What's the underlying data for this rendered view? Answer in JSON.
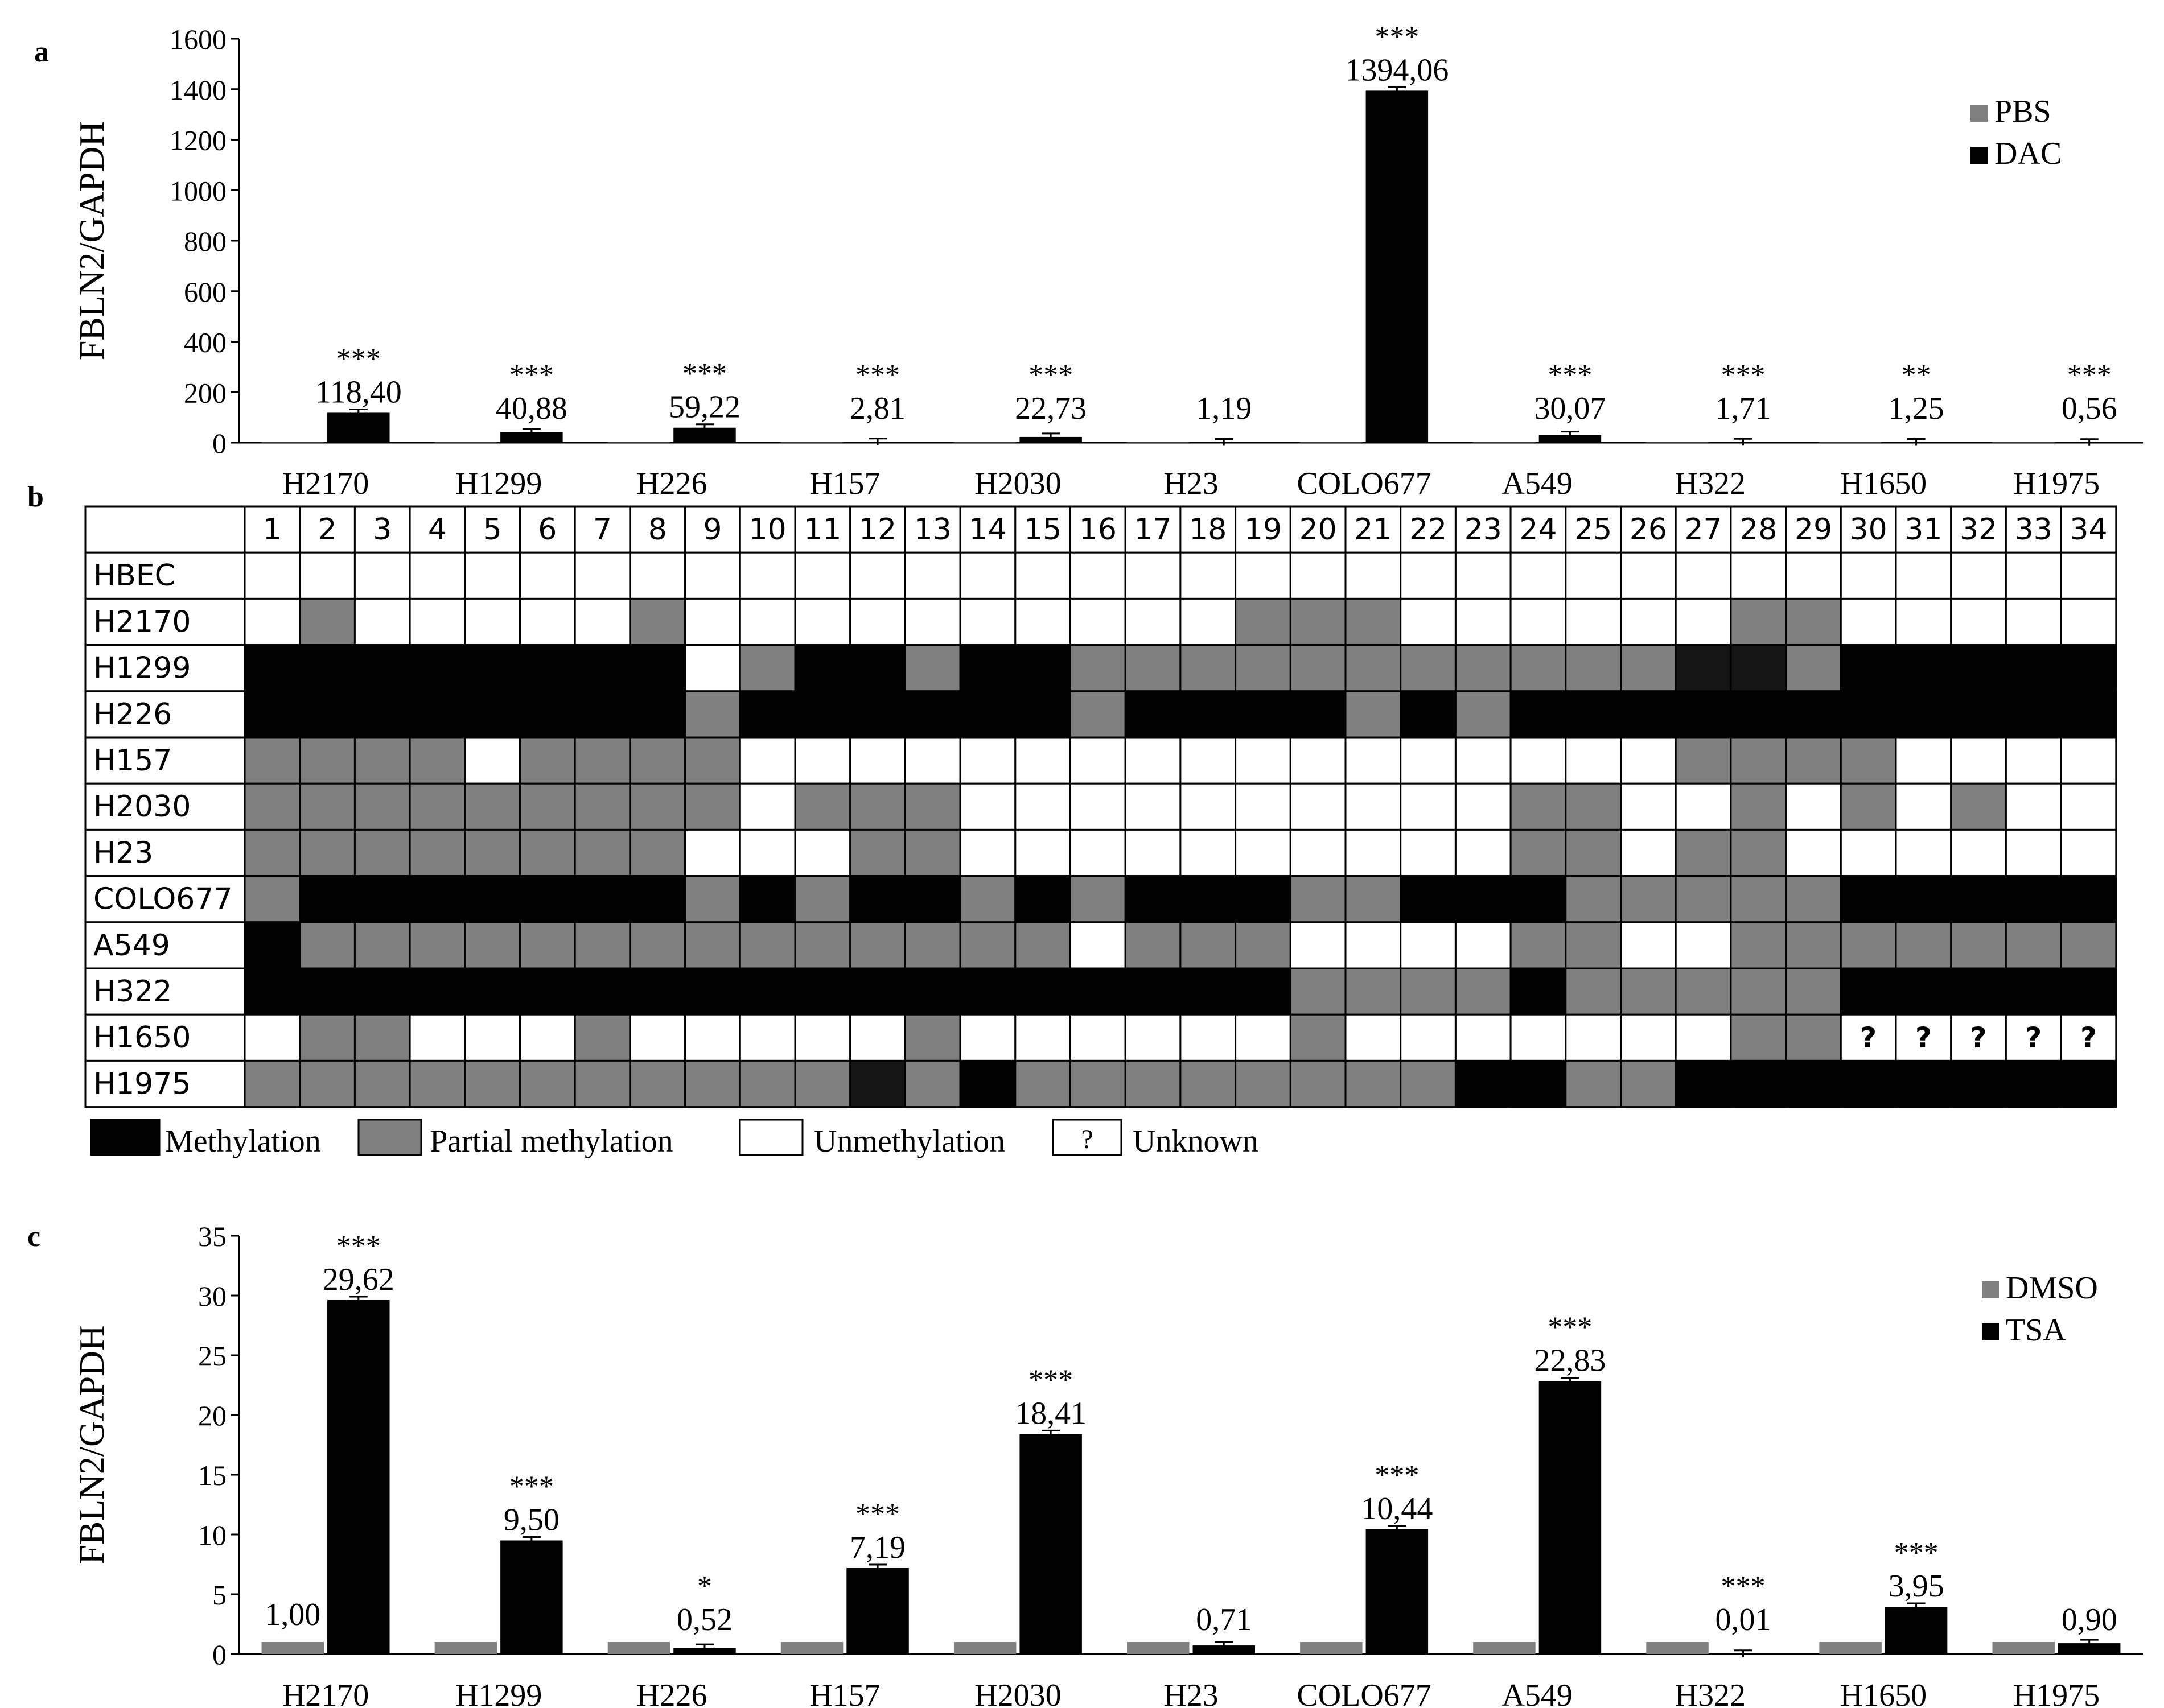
{
  "panels": {
    "a": "a",
    "b": "b",
    "c": "c"
  },
  "colors": {
    "black": "#000000",
    "gray": "#808080",
    "white": "#ffffff",
    "dark": "#151515"
  },
  "chart_data": [
    {
      "id": "a",
      "type": "bar",
      "ylabel": "FBLN2/GAPDH",
      "ylim": [
        0,
        1600
      ],
      "yticks": [
        0,
        200,
        400,
        600,
        800,
        1000,
        1200,
        1400,
        1600
      ],
      "categories": [
        "H2170",
        "H1299",
        "H226",
        "H157",
        "H2030",
        "H23",
        "COLO677",
        "A549",
        "H322",
        "H1650",
        "H1975"
      ],
      "series": [
        {
          "name": "PBS",
          "color": "#808080",
          "values": [
            1,
            1,
            1,
            1,
            1,
            1,
            1,
            1,
            1,
            1,
            1
          ]
        },
        {
          "name": "DAC",
          "color": "#000000",
          "values": [
            118.4,
            40.88,
            59.22,
            2.81,
            22.73,
            1.19,
            1394.06,
            30.07,
            1.71,
            1.25,
            0.56
          ]
        }
      ],
      "value_labels": [
        "118,40",
        "40,88",
        "59,22",
        "2,81",
        "22,73",
        "1,19",
        "1394,06",
        "30,07",
        "1,71",
        "1,25",
        "0,56"
      ],
      "significance": [
        "***",
        "***",
        "***",
        "***",
        "***",
        "",
        "***",
        "***",
        "***",
        "**",
        "***"
      ],
      "legend": "top-right"
    },
    {
      "id": "b",
      "type": "heatmap",
      "columns": [
        "1",
        "2",
        "3",
        "4",
        "5",
        "6",
        "7",
        "8",
        "9",
        "10",
        "11",
        "12",
        "13",
        "14",
        "15",
        "16",
        "17",
        "18",
        "19",
        "20",
        "21",
        "22",
        "23",
        "24",
        "25",
        "26",
        "27",
        "28",
        "29",
        "30",
        "31",
        "32",
        "33",
        "34"
      ],
      "rows": [
        {
          "name": "HBEC",
          "status": "WWWWWWWWWWWWWWWWWWWWWWWWWWWWWWWWWW"
        },
        {
          "name": "H2170",
          "status": "WPWWWWWPWWWWWWWWWWPPPWWWWWWPPWWWWW"
        },
        {
          "name": "H1299",
          "status": "MMMMMMMQWPMMPMMPPPPPPPPPPPDDPMMMMM"
        },
        {
          "name": "H226",
          "status": "MMMMMMMMPMMMMMMPMMMMPMPMMMMMMMMMMM"
        },
        {
          "name": "H157",
          "status": "PPPPWPPPPWWWWWWWWWWWWWWWWWPPPPWWWW"
        },
        {
          "name": "H2030",
          "status": "PPPPPPPPPWPPPWWWWWWWWWWPPWWPWPWPWW"
        },
        {
          "name": "H23",
          "status": "PPPPPPPPWWWPPWWWWWWWWWWPPWPPWWWWWW"
        },
        {
          "name": "COLO677",
          "status": "PMMMMMMMPMPMMPMPMMMPPMMMPPPPPMMMMM"
        },
        {
          "name": "A549",
          "status": "MPPPPPPPPPPPPPPWPPPWWWWPPWWPPPPPPP"
        },
        {
          "name": "H322",
          "status": "MMMMMMMMMMMMMMMMMMMPPPPMPPPPPMMMMM"
        },
        {
          "name": "H1650",
          "status": "WPPWWWPWWWWWPWWWWWWPWWWWWWWPPUUUUU"
        },
        {
          "name": "H1975",
          "status": "PPPPPPPPPPPDPMPPPPPPPPMMPPMMMMMMMM"
        }
      ],
      "cell_notes": [
        {
          "row": "H1299",
          "col": "8",
          "text": "?"
        }
      ],
      "legend": [
        {
          "key": "M",
          "label": "Methylation",
          "color": "#000000"
        },
        {
          "key": "P",
          "label": "Partial methylation",
          "color": "#808080"
        },
        {
          "key": "W",
          "label": "Unmethylation",
          "color": "#ffffff"
        },
        {
          "key": "U",
          "label": "Unknown",
          "color": "#ffffff",
          "symbol": "?"
        }
      ]
    },
    {
      "id": "c",
      "type": "bar",
      "ylabel": "FBLN2/GAPDH",
      "ylim": [
        0,
        35
      ],
      "yticks": [
        0,
        5,
        10,
        15,
        20,
        25,
        30,
        35
      ],
      "categories": [
        "H2170",
        "H1299",
        "H226",
        "H157",
        "H2030",
        "H23",
        "COLO677",
        "A549",
        "H322",
        "H1650",
        "H1975"
      ],
      "series": [
        {
          "name": "DMSO",
          "color": "#808080",
          "values": [
            1,
            1,
            1,
            1,
            1,
            1,
            1,
            1,
            1,
            1,
            1
          ]
        },
        {
          "name": "TSA",
          "color": "#000000",
          "values": [
            29.62,
            9.5,
            0.52,
            7.19,
            18.41,
            0.71,
            10.44,
            22.83,
            0.01,
            3.95,
            0.9
          ]
        }
      ],
      "value_labels": [
        "29,62",
        "9,50",
        "0,52",
        "7,19",
        "18,41",
        "0,71",
        "10,44",
        "22,83",
        "0,01",
        "3,95",
        "0,90"
      ],
      "significance": [
        "***",
        "***",
        "*",
        "***",
        "***",
        "",
        "***",
        "***",
        "***",
        "***",
        ""
      ],
      "baseline_label": "1,00",
      "legend": "top-right"
    }
  ]
}
